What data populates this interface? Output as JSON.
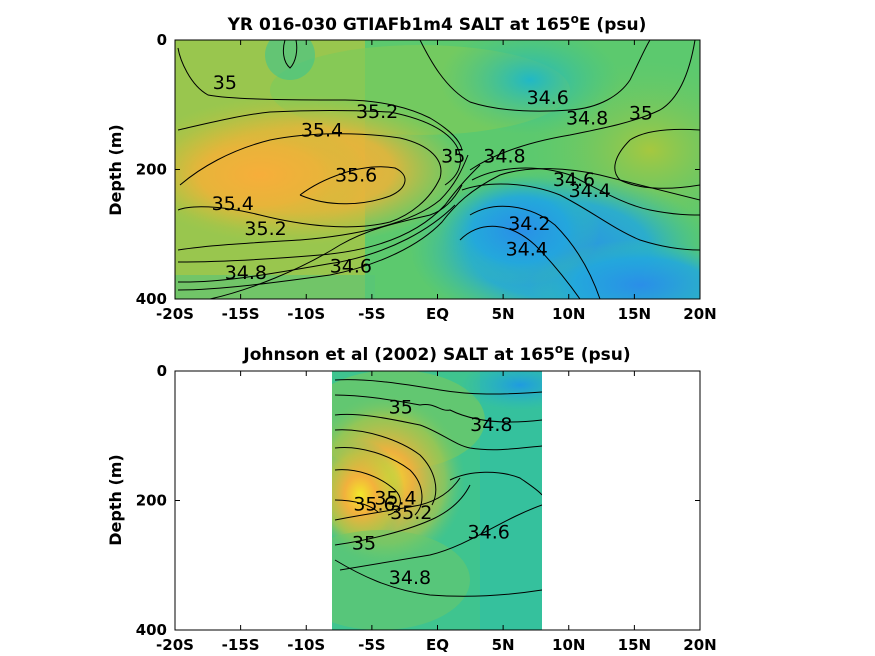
{
  "chart_data": [
    {
      "type": "heatmap",
      "title": "YR 016-030 GTIAFb1m4 SALT at 165",
      "title_sup": "o",
      "title_suffix": "E (psu)",
      "ylabel": "Depth (m)",
      "xlabel": "",
      "x_ticks": [
        "-20S",
        "-15S",
        "-10S",
        "-5S",
        "EQ",
        "5N",
        "10N",
        "15N",
        "20N"
      ],
      "x_tick_values": [
        -20,
        -15,
        -10,
        -5,
        0,
        5,
        10,
        15,
        20
      ],
      "y_ticks": [
        "0",
        "200",
        "400"
      ],
      "y_tick_values": [
        0,
        200,
        400
      ],
      "xlim": [
        -20,
        20
      ],
      "ylim": [
        0,
        400
      ],
      "y_reversed": true,
      "colormap": [
        "#2f8fe3",
        "#18b4d6",
        "#3ec48c",
        "#8fcb50",
        "#d8b83a",
        "#f5aa3c"
      ],
      "color_range": [
        34.0,
        35.8
      ],
      "data_extent_x": [
        -20,
        20
      ],
      "contour_labels": [
        {
          "text": "35",
          "x": -16.2,
          "y": 65
        },
        {
          "text": "35.2",
          "x": -4.6,
          "y": 110
        },
        {
          "text": "35.4",
          "x": -8.8,
          "y": 138
        },
        {
          "text": "35.6",
          "x": -6.2,
          "y": 208
        },
        {
          "text": "35.4",
          "x": -15.6,
          "y": 252
        },
        {
          "text": "35.2",
          "x": -13.1,
          "y": 290
        },
        {
          "text": "34.8",
          "x": -14.6,
          "y": 358
        },
        {
          "text": "34.6",
          "x": -6.6,
          "y": 348
        },
        {
          "text": "35",
          "x": 1.2,
          "y": 178
        },
        {
          "text": "34.8",
          "x": 5.1,
          "y": 178
        },
        {
          "text": "34.6",
          "x": 8.4,
          "y": 88
        },
        {
          "text": "34.8",
          "x": 11.4,
          "y": 120
        },
        {
          "text": "35",
          "x": 15.5,
          "y": 112
        },
        {
          "text": "34.6",
          "x": 10.4,
          "y": 215
        },
        {
          "text": "34.4",
          "x": 11.6,
          "y": 232
        },
        {
          "text": "34.2",
          "x": 7.0,
          "y": 283
        },
        {
          "text": "34.4",
          "x": 6.8,
          "y": 322
        }
      ]
    },
    {
      "type": "heatmap",
      "title": "Johnson et al (2002) SALT at 165",
      "title_sup": "o",
      "title_suffix": "E (psu)",
      "ylabel": "Depth (m)",
      "xlabel": "",
      "x_ticks": [
        "-20S",
        "-15S",
        "-10S",
        "-5S",
        "EQ",
        "5N",
        "10N",
        "15N",
        "20N"
      ],
      "x_tick_values": [
        -20,
        -15,
        -10,
        -5,
        0,
        5,
        10,
        15,
        20
      ],
      "y_ticks": [
        "0",
        "200",
        "400"
      ],
      "y_tick_values": [
        0,
        200,
        400
      ],
      "xlim": [
        -20,
        20
      ],
      "ylim": [
        0,
        400
      ],
      "y_reversed": true,
      "colormap": [
        "#2f8fe3",
        "#18b4d6",
        "#3ec48c",
        "#8fcb50",
        "#d8b83a",
        "#f5aa3c",
        "#f2e52a"
      ],
      "color_range": [
        34.0,
        36.0
      ],
      "data_extent_x": [
        -8,
        8
      ],
      "contour_labels": [
        {
          "text": "35",
          "x": -2.8,
          "y": 55
        },
        {
          "text": "34.8",
          "x": 4.1,
          "y": 82
        },
        {
          "text": "35.6",
          "x": -4.8,
          "y": 205
        },
        {
          "text": "35.4",
          "x": -3.2,
          "y": 195
        },
        {
          "text": "35.2",
          "x": -2.0,
          "y": 218
        },
        {
          "text": "34.6",
          "x": 3.9,
          "y": 248
        },
        {
          "text": "35",
          "x": -5.6,
          "y": 265
        },
        {
          "text": "34.8",
          "x": -2.1,
          "y": 318
        }
      ]
    }
  ]
}
